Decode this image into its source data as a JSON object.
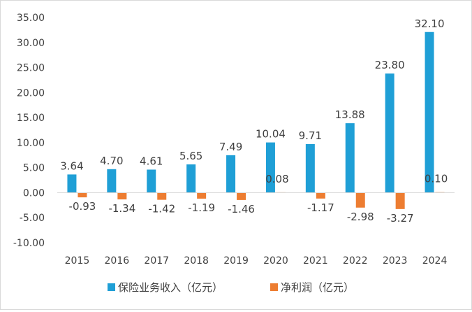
{
  "chart_data": {
    "type": "bar",
    "title": "",
    "xlabel": "",
    "ylabel": "",
    "categories": [
      "2015",
      "2016",
      "2017",
      "2018",
      "2019",
      "2020",
      "2021",
      "2022",
      "2023",
      "2024"
    ],
    "series": [
      {
        "name": "保险业务收入（亿元）",
        "color": "#1f9fd6",
        "values": [
          3.64,
          4.7,
          4.61,
          5.65,
          7.49,
          10.04,
          9.71,
          13.88,
          23.8,
          32.1
        ],
        "labels": [
          "3.64",
          "4.70",
          "4.61",
          "5.65",
          "7.49",
          "10.04",
          "9.71",
          "13.88",
          "23.80",
          "32.10"
        ]
      },
      {
        "name": "净利润（亿元）",
        "color": "#ed7d31",
        "values": [
          -0.93,
          -1.34,
          -1.42,
          -1.19,
          -1.46,
          0.08,
          -1.17,
          -2.98,
          -3.27,
          0.1
        ],
        "labels": [
          "-0.93",
          "-1.34",
          "-1.42",
          "-1.19",
          "-1.46",
          "0.08",
          "-1.17",
          "-2.98",
          "-3.27",
          "0.10"
        ]
      }
    ],
    "ylim": [
      -10,
      35
    ],
    "yticks": [
      "-10.00",
      "-5.00",
      "0.00",
      "5.00",
      "10.00",
      "15.00",
      "20.00",
      "25.00",
      "30.00",
      "35.00"
    ],
    "ytick_values": [
      -10,
      -5,
      0,
      5,
      10,
      15,
      20,
      25,
      30,
      35
    ],
    "grid": false,
    "legend": "bottom"
  }
}
